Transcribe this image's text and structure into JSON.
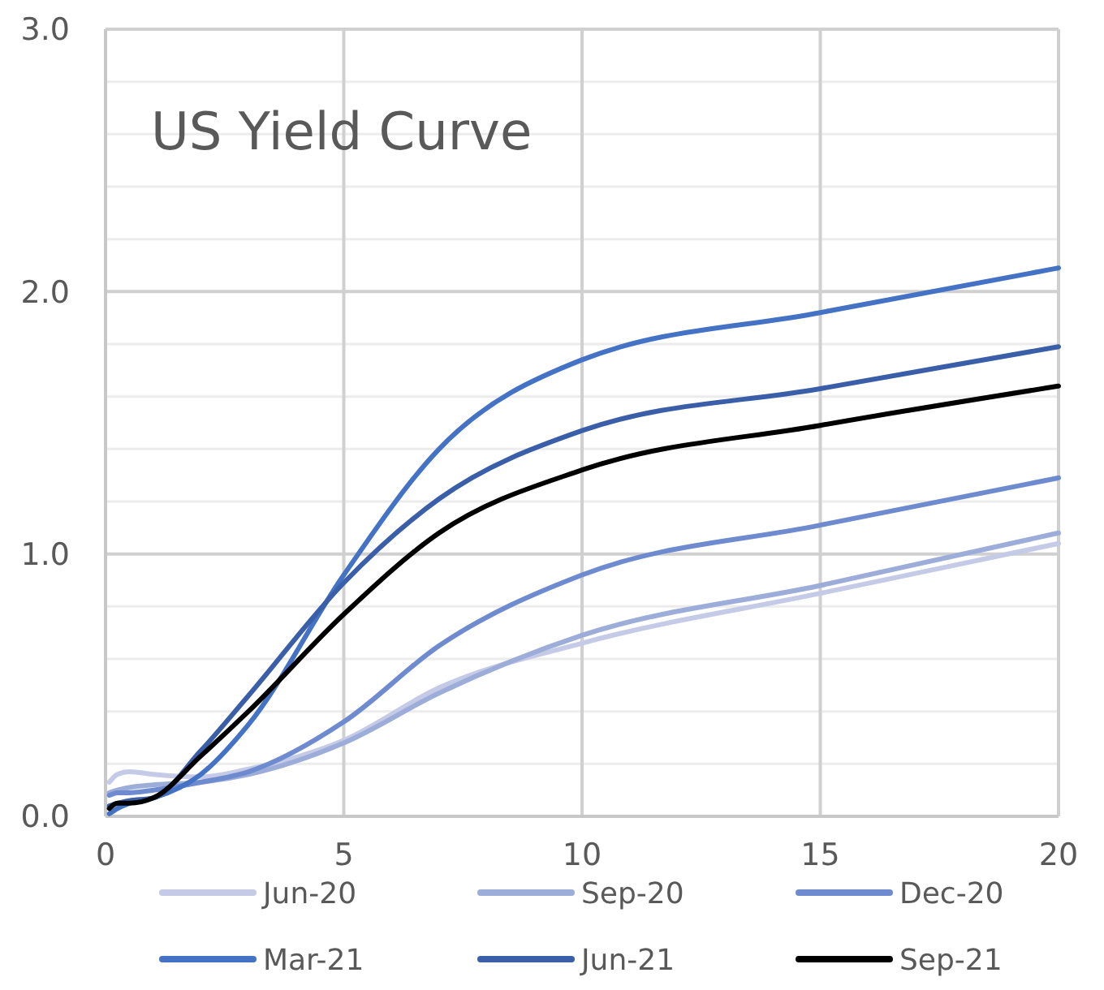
{
  "chart_data": {
    "type": "line",
    "title": "US Yield Curve",
    "x": [
      0.08,
      0.25,
      0.5,
      1,
      2,
      3,
      5,
      7,
      10,
      15,
      20
    ],
    "series": [
      {
        "name": "Jun-20",
        "color": "#c5cbe6",
        "values": [
          0.13,
          0.16,
          0.17,
          0.16,
          0.15,
          0.18,
          0.29,
          0.49,
          0.66,
          0.85,
          1.04
        ]
      },
      {
        "name": "Sep-20",
        "color": "#9dadd9",
        "values": [
          0.09,
          0.1,
          0.11,
          0.12,
          0.13,
          0.16,
          0.28,
          0.47,
          0.69,
          0.88,
          1.08
        ]
      },
      {
        "name": "Dec-20",
        "color": "#6f8bd0",
        "values": [
          0.08,
          0.09,
          0.09,
          0.1,
          0.13,
          0.17,
          0.36,
          0.65,
          0.92,
          1.11,
          1.29
        ]
      },
      {
        "name": "Mar-21",
        "color": "#4472c4",
        "values": [
          0.01,
          0.03,
          0.05,
          0.07,
          0.16,
          0.35,
          0.92,
          1.4,
          1.74,
          1.92,
          2.09
        ]
      },
      {
        "name": "Jun-21",
        "color": "#3a5fa8",
        "values": [
          0.04,
          0.05,
          0.06,
          0.07,
          0.25,
          0.46,
          0.89,
          1.21,
          1.47,
          1.63,
          1.79
        ]
      },
      {
        "name": "Sep-21",
        "color": "#000000",
        "values": [
          0.03,
          0.05,
          0.05,
          0.07,
          0.23,
          0.4,
          0.77,
          1.08,
          1.32,
          1.49,
          1.64
        ]
      }
    ],
    "xlim": [
      0,
      20
    ],
    "xticks": [
      0,
      5,
      10,
      15,
      20
    ],
    "ylim": [
      0,
      3
    ],
    "yticks": [
      {
        "value": 0,
        "label": "0.0"
      },
      {
        "value": 0.2,
        "label": null
      },
      {
        "value": 0.4,
        "label": null
      },
      {
        "value": 0.6,
        "label": null
      },
      {
        "value": 0.8,
        "label": null
      },
      {
        "value": 1,
        "label": "1.0"
      },
      {
        "value": 1.2,
        "label": null
      },
      {
        "value": 1.4,
        "label": null
      },
      {
        "value": 1.6,
        "label": null
      },
      {
        "value": 1.8,
        "label": null
      },
      {
        "value": 2,
        "label": "2.0"
      },
      {
        "value": 2.2,
        "label": null
      },
      {
        "value": 2.4,
        "label": null
      },
      {
        "value": 2.6,
        "label": null
      },
      {
        "value": 2.8,
        "label": null
      },
      {
        "value": 3,
        "label": "3.0"
      }
    ],
    "grid": true,
    "legend": "bottom",
    "line_style": "solid",
    "marker": "none"
  }
}
